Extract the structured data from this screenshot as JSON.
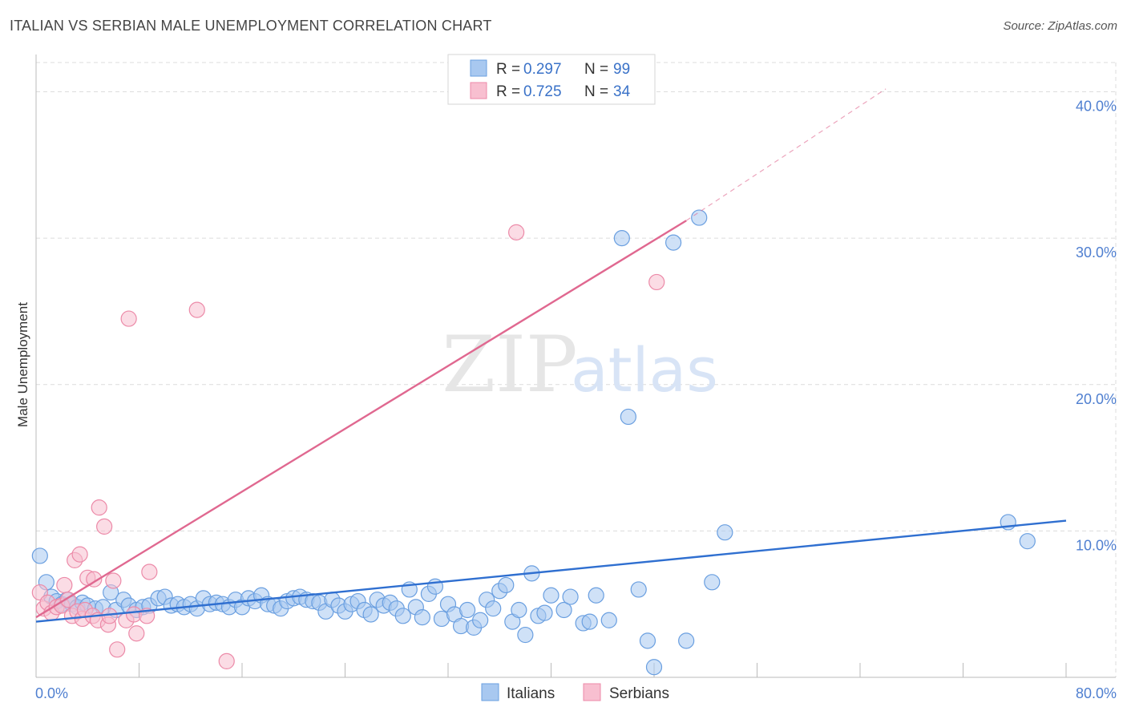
{
  "title": "ITALIAN VS SERBIAN MALE UNEMPLOYMENT CORRELATION CHART",
  "source": "Source: ZipAtlas.com",
  "watermark": {
    "zip": "ZIP",
    "atlas": "atlas"
  },
  "colors": {
    "italians_fill": "#a8c8f0",
    "italians_stroke": "#6a9fe0",
    "italians_line": "#2f6fd0",
    "serbians_fill": "#f8bfd0",
    "serbians_stroke": "#ec8aa8",
    "serbians_line": "#e06890",
    "grid": "#dcdcdc",
    "axis_text": "#4f7fd0"
  },
  "legend": {
    "rows": [
      {
        "r_label": "R = ",
        "r_value": "0.297",
        "n_label": "N = ",
        "n_value": "99"
      },
      {
        "r_label": "R = ",
        "r_value": "0.725",
        "n_label": "N = ",
        "n_value": "34"
      }
    ]
  },
  "chart_data": {
    "type": "scatter",
    "title": "ITALIAN VS SERBIAN MALE UNEMPLOYMENT CORRELATION CHART",
    "xlabel": "",
    "ylabel": "Male Unemployment",
    "xlim": [
      0,
      80
    ],
    "ylim": [
      0,
      42
    ],
    "x_tick_labels": [
      "0.0%",
      "80.0%"
    ],
    "y_ticks": [
      10,
      20,
      30,
      40
    ],
    "y_tick_labels": [
      "10.0%",
      "20.0%",
      "30.0%",
      "40.0%"
    ],
    "series": [
      {
        "name": "Italians",
        "r": 0.297,
        "n": 99,
        "trend": {
          "x0": 0,
          "y0": 3.8,
          "x1": 80,
          "y1": 10.7
        },
        "points": [
          [
            0.3,
            8.3
          ],
          [
            0.8,
            6.5
          ],
          [
            1.2,
            5.5
          ],
          [
            1.6,
            5.2
          ],
          [
            2.0,
            5.0
          ],
          [
            2.4,
            5.3
          ],
          [
            2.8,
            5.0
          ],
          [
            3.2,
            4.8
          ],
          [
            3.6,
            5.1
          ],
          [
            4.0,
            4.9
          ],
          [
            4.6,
            4.7
          ],
          [
            5.2,
            4.8
          ],
          [
            5.8,
            5.8
          ],
          [
            6.2,
            4.6
          ],
          [
            6.8,
            5.3
          ],
          [
            7.2,
            4.9
          ],
          [
            7.8,
            4.6
          ],
          [
            8.3,
            4.8
          ],
          [
            8.8,
            4.9
          ],
          [
            9.5,
            5.4
          ],
          [
            10.0,
            5.5
          ],
          [
            10.5,
            4.9
          ],
          [
            11.0,
            5.0
          ],
          [
            11.5,
            4.8
          ],
          [
            12.0,
            5.0
          ],
          [
            12.5,
            4.7
          ],
          [
            13.0,
            5.4
          ],
          [
            13.5,
            5.0
          ],
          [
            14.0,
            5.1
          ],
          [
            14.5,
            5.0
          ],
          [
            15.0,
            4.8
          ],
          [
            15.5,
            5.3
          ],
          [
            16.0,
            4.8
          ],
          [
            16.5,
            5.4
          ],
          [
            17.0,
            5.2
          ],
          [
            17.5,
            5.6
          ],
          [
            18.0,
            5.0
          ],
          [
            18.5,
            4.9
          ],
          [
            19.0,
            4.7
          ],
          [
            19.5,
            5.2
          ],
          [
            20.0,
            5.4
          ],
          [
            20.5,
            5.5
          ],
          [
            21.0,
            5.3
          ],
          [
            21.5,
            5.2
          ],
          [
            22.0,
            5.1
          ],
          [
            22.5,
            4.5
          ],
          [
            23.0,
            5.3
          ],
          [
            23.5,
            4.9
          ],
          [
            24.0,
            4.5
          ],
          [
            24.5,
            5.0
          ],
          [
            25.0,
            5.2
          ],
          [
            25.5,
            4.6
          ],
          [
            26.0,
            4.3
          ],
          [
            26.5,
            5.3
          ],
          [
            27.0,
            4.9
          ],
          [
            27.5,
            5.1
          ],
          [
            28.0,
            4.7
          ],
          [
            28.5,
            4.2
          ],
          [
            29.0,
            6.0
          ],
          [
            29.5,
            4.8
          ],
          [
            30.0,
            4.1
          ],
          [
            30.5,
            5.7
          ],
          [
            31.0,
            6.2
          ],
          [
            31.5,
            4.0
          ],
          [
            32.0,
            5.0
          ],
          [
            32.5,
            4.3
          ],
          [
            33.0,
            3.5
          ],
          [
            33.5,
            4.6
          ],
          [
            34.0,
            3.4
          ],
          [
            34.5,
            3.9
          ],
          [
            35.0,
            5.3
          ],
          [
            35.5,
            4.7
          ],
          [
            36.0,
            5.9
          ],
          [
            36.5,
            6.3
          ],
          [
            37.0,
            3.8
          ],
          [
            37.5,
            4.6
          ],
          [
            38.0,
            2.9
          ],
          [
            38.5,
            7.1
          ],
          [
            39.0,
            4.2
          ],
          [
            39.5,
            4.4
          ],
          [
            40.0,
            5.6
          ],
          [
            41.0,
            4.6
          ],
          [
            41.5,
            5.5
          ],
          [
            42.5,
            3.7
          ],
          [
            43.0,
            3.8
          ],
          [
            43.5,
            5.6
          ],
          [
            44.5,
            3.9
          ],
          [
            45.5,
            30.0
          ],
          [
            46.0,
            17.8
          ],
          [
            46.8,
            6.0
          ],
          [
            47.5,
            2.5
          ],
          [
            49.5,
            29.7
          ],
          [
            50.5,
            2.5
          ],
          [
            51.5,
            31.4
          ],
          [
            52.5,
            6.5
          ],
          [
            53.5,
            9.9
          ],
          [
            75.5,
            10.6
          ],
          [
            77.0,
            9.3
          ],
          [
            48.0,
            0.7
          ]
        ]
      },
      {
        "name": "Serbians",
        "r": 0.725,
        "n": 34,
        "trend": {
          "x0": 0,
          "y0": 4.1,
          "x1": 50.5,
          "y1": 31.2
        },
        "trend_extension": {
          "x0": 50.5,
          "y0": 31.2,
          "x1": 66,
          "y1": 40.2
        },
        "points": [
          [
            0.3,
            5.8
          ],
          [
            0.6,
            4.7
          ],
          [
            0.9,
            5.1
          ],
          [
            1.2,
            4.4
          ],
          [
            1.6,
            4.8
          ],
          [
            2.0,
            4.9
          ],
          [
            2.2,
            6.3
          ],
          [
            2.5,
            5.3
          ],
          [
            2.8,
            4.2
          ],
          [
            3.2,
            4.5
          ],
          [
            3.0,
            8.0
          ],
          [
            3.4,
            8.4
          ],
          [
            3.6,
            4.0
          ],
          [
            3.8,
            4.6
          ],
          [
            4.0,
            6.8
          ],
          [
            4.4,
            4.2
          ],
          [
            4.8,
            3.9
          ],
          [
            4.5,
            6.7
          ],
          [
            4.9,
            11.6
          ],
          [
            5.3,
            10.3
          ],
          [
            5.6,
            3.6
          ],
          [
            5.7,
            4.2
          ],
          [
            6.0,
            6.6
          ],
          [
            6.3,
            1.9
          ],
          [
            7.0,
            3.9
          ],
          [
            7.6,
            4.3
          ],
          [
            7.2,
            24.5
          ],
          [
            7.8,
            3.0
          ],
          [
            8.6,
            4.2
          ],
          [
            8.8,
            7.2
          ],
          [
            12.5,
            25.1
          ],
          [
            14.8,
            1.1
          ],
          [
            37.3,
            30.4
          ],
          [
            48.2,
            27.0
          ]
        ]
      }
    ]
  }
}
